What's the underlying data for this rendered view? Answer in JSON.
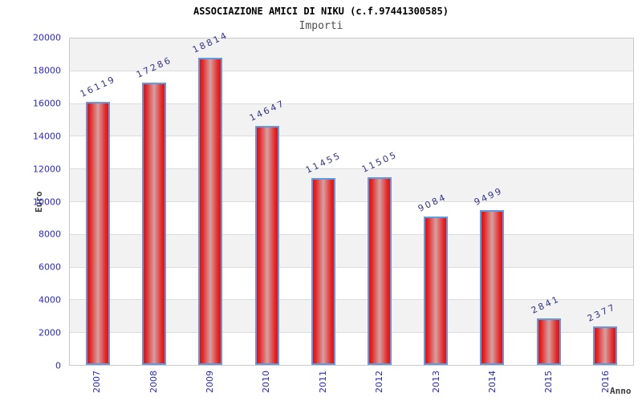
{
  "chart_data": {
    "type": "bar",
    "title": "ASSOCIAZIONE AMICI DI NIKU (c.f.97441300585)",
    "subtitle": "Importi",
    "xlabel": "Anno",
    "ylabel": "Euro",
    "categories": [
      "2007",
      "2008",
      "2009",
      "2010",
      "2011",
      "2012",
      "2013",
      "2014",
      "2015",
      "2016"
    ],
    "values": [
      16119,
      17286,
      18814,
      14647,
      11455,
      11505,
      9084,
      9499,
      2841,
      2377
    ],
    "ylim": [
      0,
      20000
    ],
    "yticks": [
      0,
      2000,
      4000,
      6000,
      8000,
      10000,
      12000,
      14000,
      16000,
      18000,
      20000
    ],
    "grid": "horizontal-bands-alternating",
    "legend": null,
    "bar_label_rotation_deg": -25,
    "colors": {
      "bar_edge": "#e81111",
      "bar_center": "#d4a0a0",
      "bar_border": "#5e9be0",
      "tick_label": "#2828cf",
      "value_label": "#333388",
      "band_shade": "#f2f2f2",
      "grid_line": "#dcdcdc",
      "plot_border": "#c9c9c9",
      "title_color": "#000000",
      "subtitle_color": "#4f4f4f",
      "axis_title_color": "#3c3c3c"
    }
  }
}
